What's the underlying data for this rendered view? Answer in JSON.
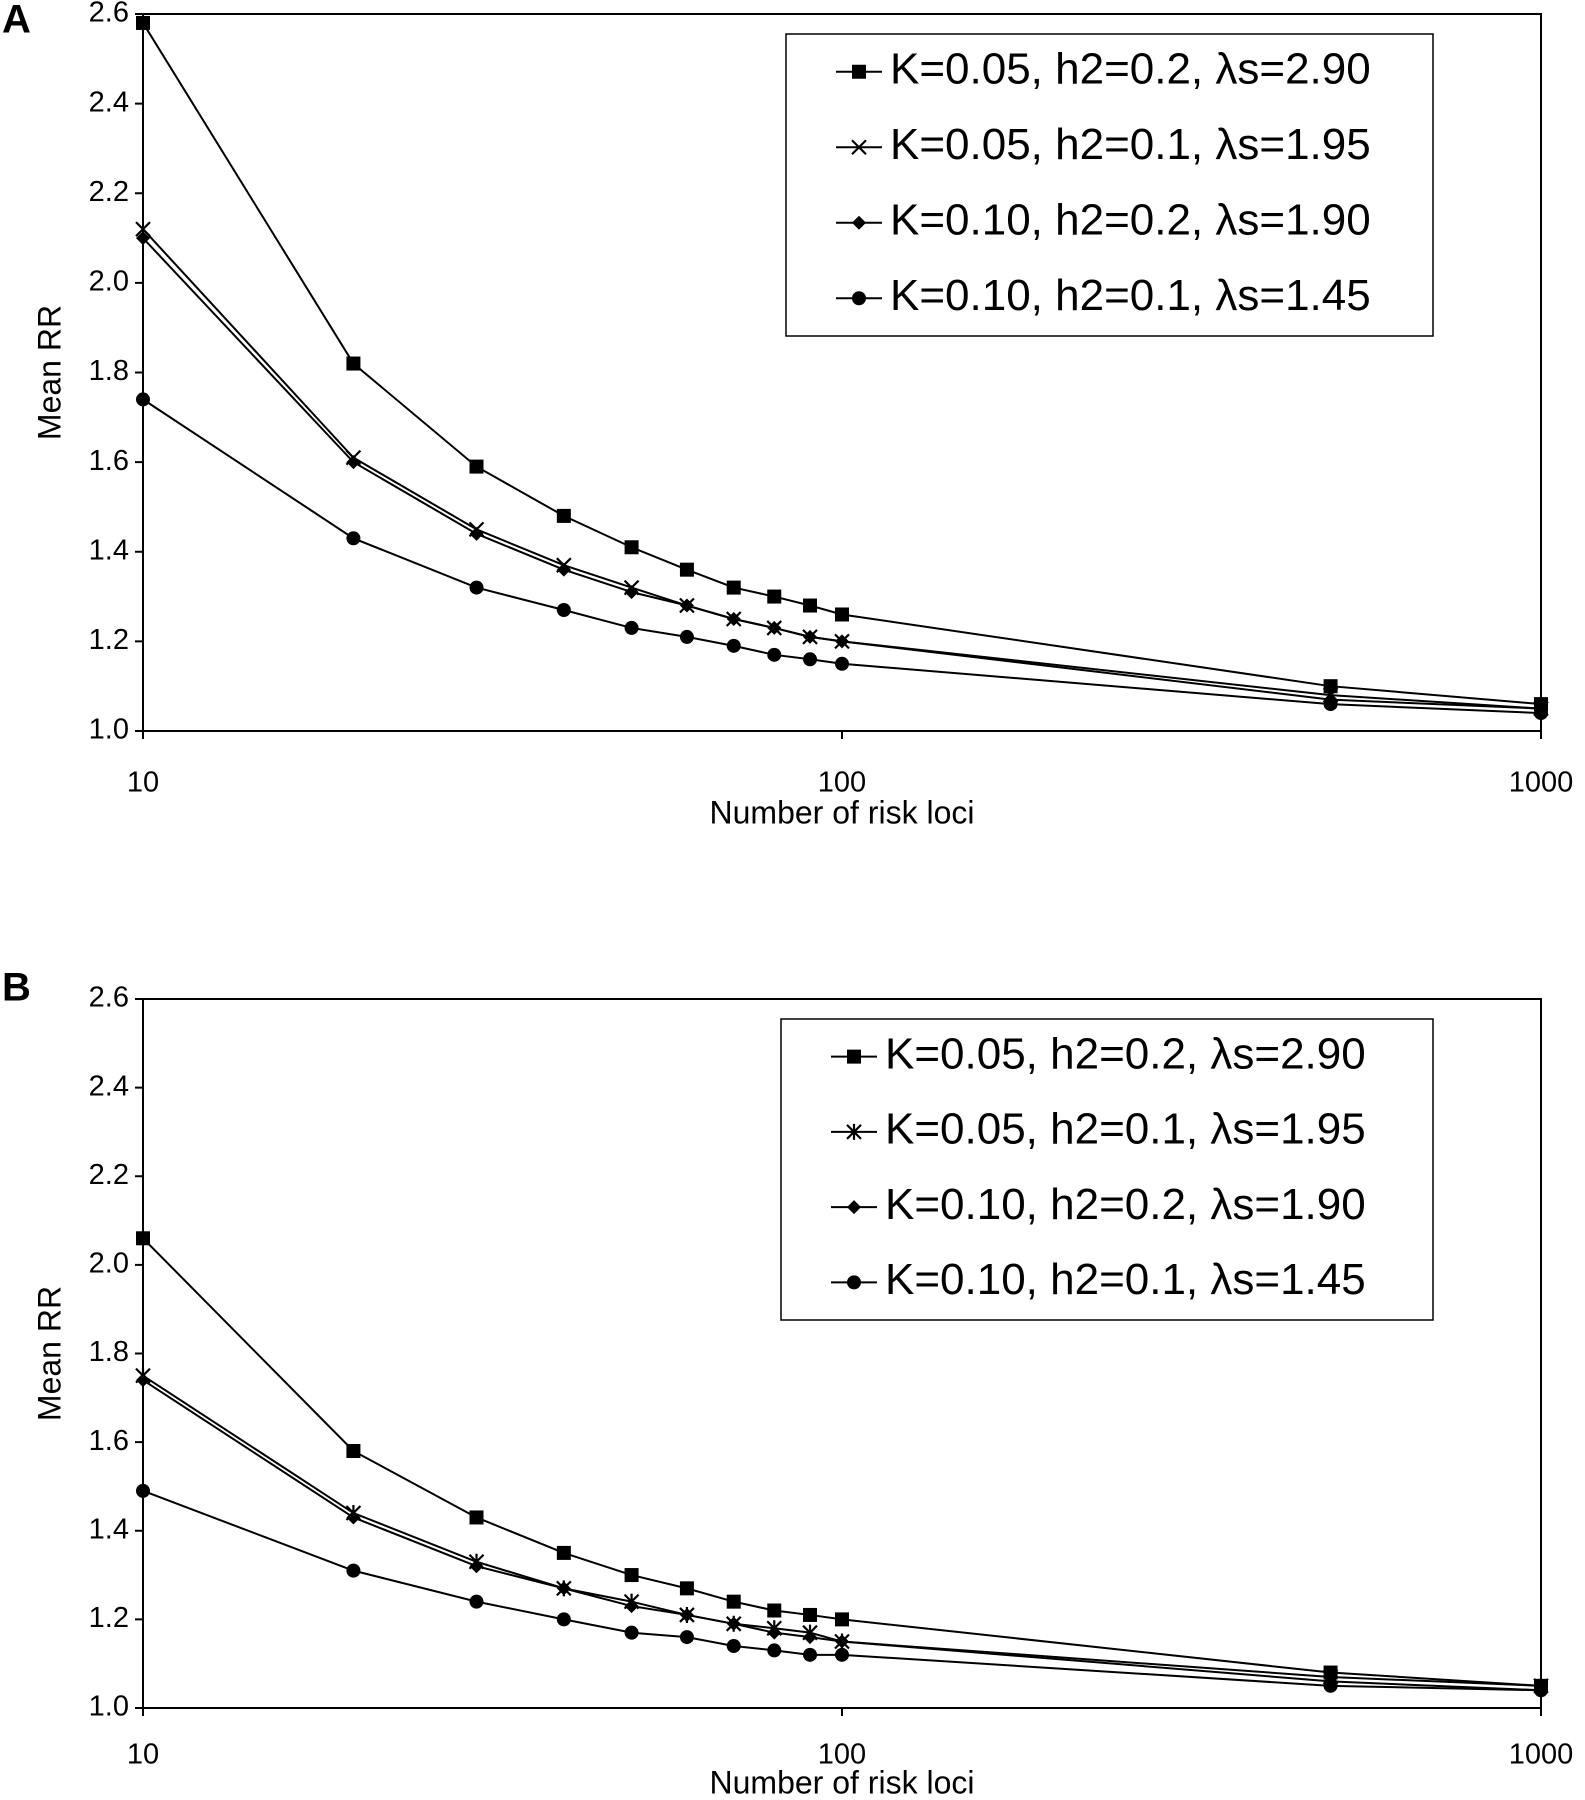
{
  "chart_data": [
    {
      "type": "line",
      "panel": "A",
      "x_label": "Number of risk loci",
      "y_label": "Mean RR",
      "log_x": true,
      "grid": false,
      "legend": "top-right",
      "xlim": [
        10,
        1000
      ],
      "xticks": [
        10,
        100,
        1000
      ],
      "ylim": [
        1,
        2.6
      ],
      "yticks": [
        {
          "value": 1,
          "label": "1.0"
        },
        1.2,
        1.4,
        1.6,
        1.8,
        {
          "value": 2,
          "label": "2.0"
        },
        2.2,
        2.4,
        2.6
      ],
      "x": [
        10,
        20,
        30,
        40,
        50,
        60,
        70,
        80,
        90,
        100,
        500,
        1000
      ],
      "series": [
        {
          "name": "K=0.05, h2=0.2, λs=2.90",
          "color": "#000000",
          "marker": "square",
          "values": [
            2.58,
            1.82,
            1.59,
            1.48,
            1.41,
            1.36,
            1.32,
            1.3,
            1.28,
            1.26,
            1.1,
            1.06
          ]
        },
        {
          "name": "K=0.05, h2=0.1, λs=1.95",
          "color": "#000000",
          "marker": "x",
          "values": [
            2.12,
            1.61,
            1.45,
            1.37,
            1.32,
            1.28,
            1.25,
            1.23,
            1.21,
            1.2,
            1.08,
            1.05
          ]
        },
        {
          "name": "K=0.10, h2=0.2, λs=1.90",
          "color": "#000000",
          "marker": "diamond",
          "values": [
            2.1,
            1.6,
            1.44,
            1.36,
            1.31,
            1.28,
            1.25,
            1.23,
            1.21,
            1.2,
            1.07,
            1.05
          ]
        },
        {
          "name": "K=0.10, h2=0.1, λs=1.45",
          "color": "#000000",
          "marker": "circle",
          "values": [
            1.74,
            1.43,
            1.32,
            1.27,
            1.23,
            1.21,
            1.19,
            1.17,
            1.16,
            1.15,
            1.06,
            1.04
          ]
        }
      ]
    },
    {
      "type": "line",
      "panel": "B",
      "x_label": "Number of risk loci",
      "y_label": "Mean RR",
      "log_x": true,
      "grid": false,
      "legend": "top-right",
      "xlim": [
        10,
        1000
      ],
      "xticks": [
        10,
        100,
        1000
      ],
      "ylim": [
        1,
        2.6
      ],
      "yticks": [
        {
          "value": 1,
          "label": "1.0"
        },
        1.2,
        1.4,
        1.6,
        1.8,
        {
          "value": 2,
          "label": "2.0"
        },
        2.2,
        2.4,
        2.6
      ],
      "x": [
        10,
        20,
        30,
        40,
        50,
        60,
        70,
        80,
        90,
        100,
        500,
        1000
      ],
      "series": [
        {
          "name": "K=0.05, h2=0.2, λs=2.90",
          "color": "#000000",
          "marker": "square",
          "values": [
            2.06,
            1.58,
            1.43,
            1.35,
            1.3,
            1.27,
            1.24,
            1.22,
            1.21,
            1.2,
            1.08,
            1.05
          ]
        },
        {
          "name": "K=0.05, h2=0.1, λs=1.95",
          "color": "#000000",
          "marker": "asterisk",
          "values": [
            1.75,
            1.44,
            1.33,
            1.27,
            1.24,
            1.21,
            1.19,
            1.18,
            1.17,
            1.15,
            1.07,
            1.05
          ]
        },
        {
          "name": "K=0.10, h2=0.2, λs=1.90",
          "color": "#000000",
          "marker": "diamond",
          "values": [
            1.74,
            1.43,
            1.32,
            1.27,
            1.23,
            1.21,
            1.19,
            1.17,
            1.16,
            1.15,
            1.06,
            1.04
          ]
        },
        {
          "name": "K=0.10, h2=0.1, λs=1.45",
          "color": "#000000",
          "marker": "circle",
          "values": [
            1.49,
            1.31,
            1.24,
            1.2,
            1.17,
            1.16,
            1.14,
            1.13,
            1.12,
            1.12,
            1.05,
            1.04
          ]
        }
      ]
    }
  ]
}
